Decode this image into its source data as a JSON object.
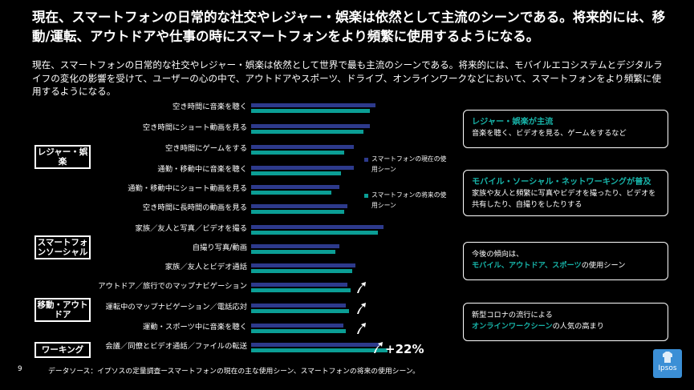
{
  "title": "現在、スマートフォンの日常的な社交やレジャー・娯楽は依然として主流のシーンである。将来的には、移動/運転、アウトドアや仕事の時にスマートフォンをより頻繁に使用するようになる。",
  "subtitle": "現在、スマートフォンの日常的な社交やレジャー・娯楽は依然として世界で最も主流のシーンである。将来的には、モバイルエコシステムとデジタルライフの変化の影響を受けて、ユーザーの心の中で、アウトドアやスポーツ、ドライブ、オンラインワークなどにおいて、スマートフォンをより頻繁に使用するようになる。",
  "categories": [
    {
      "label": "レジャー・娯楽"
    },
    {
      "label": "スマートフォンソーシャル"
    },
    {
      "label": "移動・アウトドア"
    },
    {
      "label": "ワーキング"
    }
  ],
  "legend": {
    "current": "スマートフォンの現在の使用シーン",
    "future": "スマートフォンの将来の使用シーン",
    "current_color": "#2d3a8c",
    "future_color": "#0b9e95"
  },
  "chart_data": {
    "type": "bar",
    "orientation": "horizontal",
    "categories": [
      "空き時間に音楽を聴く",
      "空き時間にショート動画を見る",
      "空き時間にゲームをする",
      "通勤・移動中に音楽を聴く",
      "通勤・移動中にショート動画を見る",
      "空き時間に長時間の動画を見る",
      "家族／友人と写真／ビデオを撮る",
      "自撮り写真/動画",
      "家族／友人とビデオ通話",
      "アウトドア／旅行でのマップナビゲーション",
      "運転中のマップナビゲーション／電話応対",
      "運動・スポーツ中に音楽を聴く",
      "会議／同僚とビデオ通話／ファイルの転送"
    ],
    "series": [
      {
        "name": "スマートフォンの現在の使用シーン",
        "values": [
          155,
          148,
          128,
          128,
          110,
          120,
          165,
          110,
          130,
          120,
          118,
          115,
          160
        ]
      },
      {
        "name": "スマートフォンの将来の使用シーン",
        "values": [
          148,
          140,
          116,
          112,
          100,
          116,
          158,
          105,
          126,
          124,
          122,
          118,
          170
        ]
      }
    ],
    "annotation": "+22%"
  },
  "cards": [
    {
      "head": "レジャー・娯楽が主流",
      "body": "音楽を聴く、ビデオを見る、ゲームをするなど"
    },
    {
      "head": "モバイル・ソーシャル・ネットワーキングが普及",
      "body": "家族や友人と頻繁に写真やビデオを撮ったり、ビデオを共有したり、自撮りをしたりする"
    },
    {
      "pre": "今後の傾向は、",
      "teal": "モバイル、アウトドア、スポーツ",
      "post": "の使用シーン"
    },
    {
      "pre": "新型コロナの流行による",
      "teal": "オンラインワークシーン",
      "post": "の人気の高まり"
    }
  ],
  "source": "データソース：イプソスの定量調査ースマートフォンの現在の主な使用シーン、スマートフォンの将来の使用シーン。",
  "page_number": "9",
  "logo_text": "Ipsos"
}
